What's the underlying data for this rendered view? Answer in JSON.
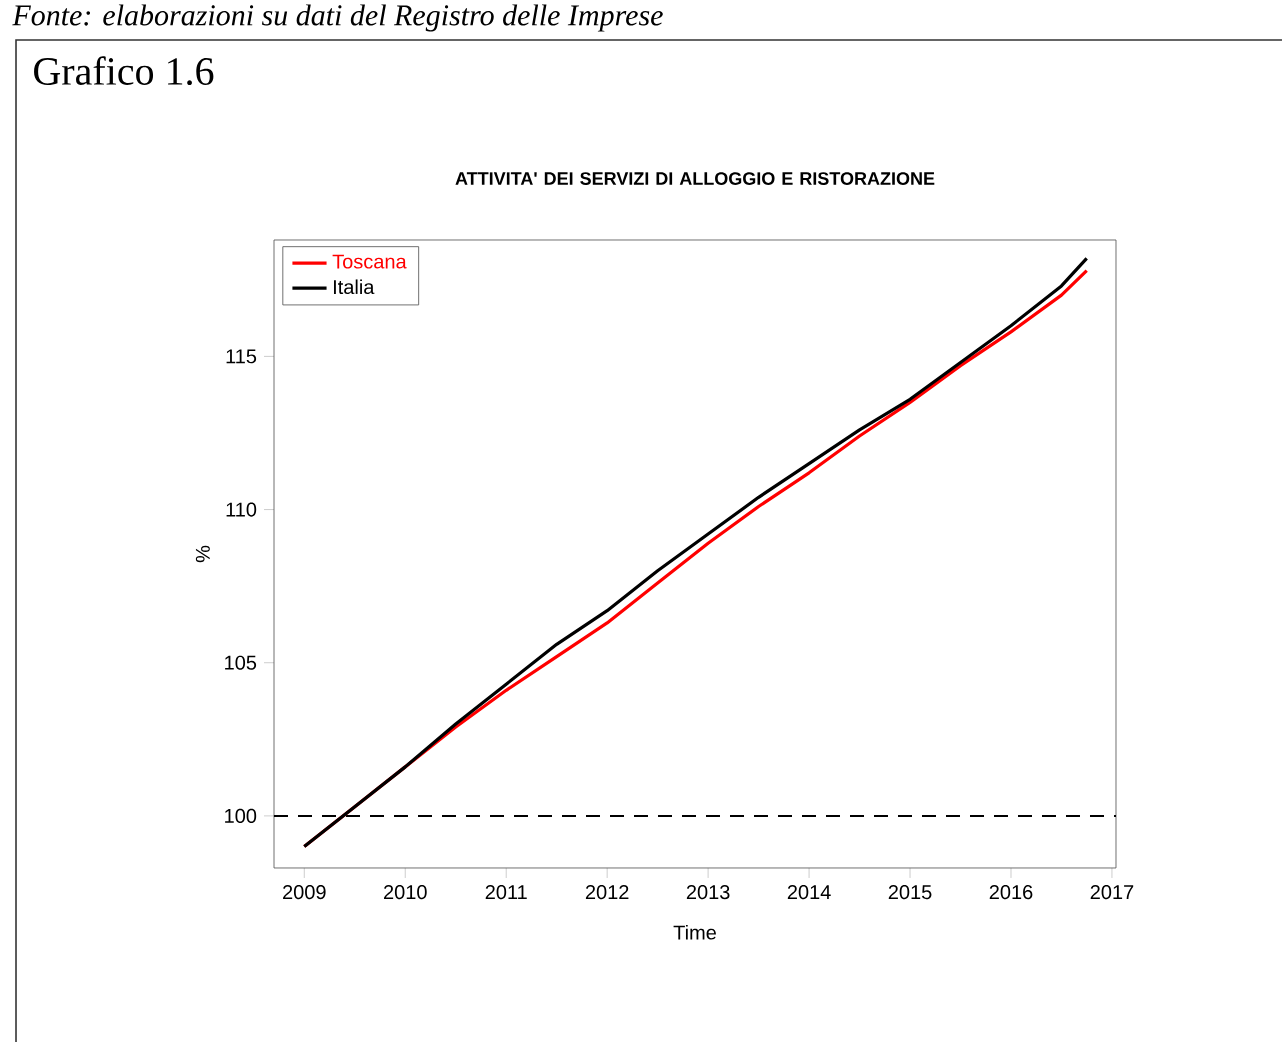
{
  "chart_data": {
    "type": "line",
    "title": "ATTIVITA' DEI SERVIZI DI ALLOGGIO E RISTORAZIONE",
    "xlabel": "Time",
    "ylabel": "%",
    "annotations": [
      "Fonte: elaborazioni su dati del Registro delle Imprese",
      "Grafico 1.6"
    ],
    "x": [
      2009,
      2009.5,
      2010,
      2010.5,
      2011,
      2011.5,
      2012,
      2012.5,
      2013,
      2013.5,
      2014,
      2014.5,
      2015,
      2015.5,
      2016,
      2016.5,
      2016.75
    ],
    "series": [
      {
        "name": "Toscana",
        "color": "#ff0000",
        "values": [
          99.0,
          100.3,
          101.6,
          102.9,
          104.1,
          105.2,
          106.3,
          107.6,
          108.9,
          110.1,
          111.2,
          112.4,
          113.5,
          114.7,
          115.8,
          117.0,
          117.8
        ]
      },
      {
        "name": "Italia",
        "color": "#000000",
        "values": [
          99.0,
          100.3,
          101.6,
          103.0,
          104.3,
          105.6,
          106.7,
          108.0,
          109.2,
          110.4,
          111.5,
          112.6,
          113.6,
          114.8,
          116.0,
          117.3,
          118.2
        ]
      }
    ],
    "xlim": [
      2008.7,
      2017.04
    ],
    "ylim": [
      98.3,
      118.8
    ],
    "xticks": [
      2009,
      2010,
      2011,
      2012,
      2013,
      2014,
      2015,
      2016,
      2017
    ],
    "yticks": [
      100,
      105,
      110,
      115
    ],
    "ref_lines": [
      {
        "axis": "y",
        "value": 100,
        "color": "#000000",
        "line_style": "dashed"
      }
    ],
    "grid": false,
    "legend": "top left",
    "line_style": "solid",
    "marker": "none"
  }
}
